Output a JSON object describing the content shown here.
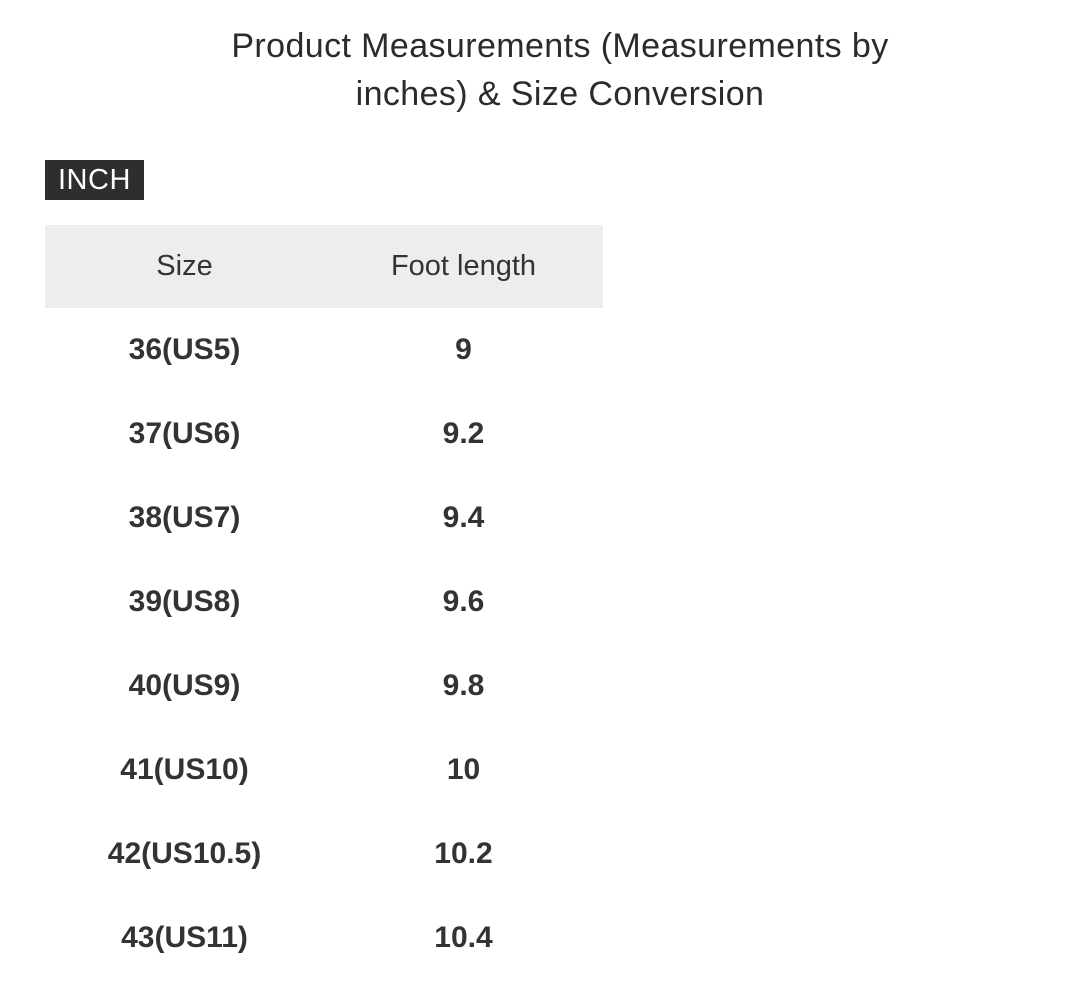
{
  "page": {
    "title_lines": {
      "line1": "Product Measurements (Measurements by",
      "line2": "inches) & Size Conversion"
    },
    "title_full": "Product Measurements (Measurements by inches) & Size Conversion"
  },
  "unit_badge": {
    "label": "INCH"
  },
  "table": {
    "columns": {
      "size": "Size",
      "foot_length": "Foot length"
    },
    "rows": [
      {
        "size": "36(US5)",
        "foot_length": "9"
      },
      {
        "size": "37(US6)",
        "foot_length": "9.2"
      },
      {
        "size": "38(US7)",
        "foot_length": "9.4"
      },
      {
        "size": "39(US8)",
        "foot_length": "9.6"
      },
      {
        "size": "40(US9)",
        "foot_length": "9.8"
      },
      {
        "size": "41(US10)",
        "foot_length": "10"
      },
      {
        "size": "42(US10.5)",
        "foot_length": "10.2"
      },
      {
        "size": "43(US11)",
        "foot_length": "10.4"
      }
    ]
  },
  "colors": {
    "title_text": "#2b2b2b",
    "badge_background": "#2e2e2e",
    "badge_text": "#ffffff",
    "header_background": "#ededed",
    "table_text": "#333333",
    "page_background": "#ffffff"
  }
}
